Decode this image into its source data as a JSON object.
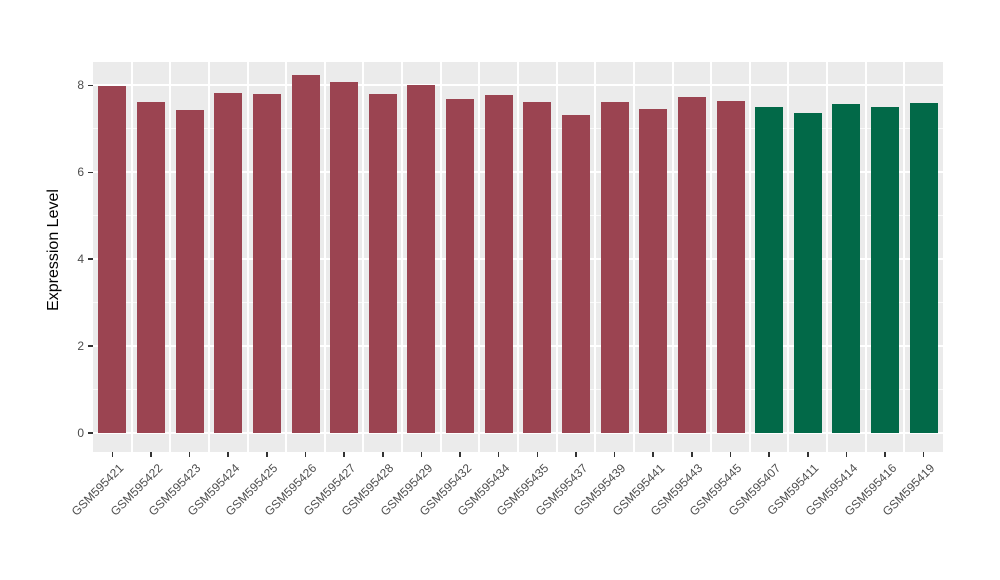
{
  "chart_data": {
    "type": "bar",
    "title": "",
    "xlabel": "",
    "ylabel": "Expression Level",
    "ylim": [
      0,
      8.54
    ],
    "yticks": [
      0,
      2,
      4,
      6,
      8
    ],
    "yminor_gridlines": [
      1,
      3,
      5,
      7
    ],
    "grid": "white major and minor horizontal gridlines plus vertical gridlines between bars on gray panel",
    "legend_position": "none",
    "categories": [
      "GSM595421",
      "GSM595422",
      "GSM595423",
      "GSM595424",
      "GSM595425",
      "GSM595426",
      "GSM595427",
      "GSM595428",
      "GSM595429",
      "GSM595432",
      "GSM595434",
      "GSM595435",
      "GSM595437",
      "GSM595439",
      "GSM595441",
      "GSM595443",
      "GSM595445",
      "GSM595407",
      "GSM595411",
      "GSM595414",
      "GSM595416",
      "GSM595419"
    ],
    "values": [
      7.98,
      7.62,
      7.43,
      7.82,
      7.81,
      8.24,
      8.07,
      7.8,
      8.01,
      7.7,
      7.79,
      7.61,
      7.31,
      7.63,
      7.47,
      7.74,
      7.65,
      7.5,
      7.36,
      7.58,
      7.51,
      7.6
    ],
    "bar_colors": [
      "#9B4451",
      "#9B4451",
      "#9B4451",
      "#9B4451",
      "#9B4451",
      "#9B4451",
      "#9B4451",
      "#9B4451",
      "#9B4451",
      "#9B4451",
      "#9B4451",
      "#9B4451",
      "#9B4451",
      "#9B4451",
      "#9B4451",
      "#9B4451",
      "#9B4451",
      "#026948",
      "#026948",
      "#026948",
      "#026948",
      "#026948"
    ],
    "colors": {
      "group_a_bar": "#9B4451",
      "group_b_bar": "#026948",
      "panel_background": "#EBEBEB",
      "gridline": "#FFFFFF",
      "tick_mark": "#333333",
      "tick_label": "#4D4D4D",
      "axis_title": "#000000",
      "page_background": "#FFFFFF"
    }
  }
}
